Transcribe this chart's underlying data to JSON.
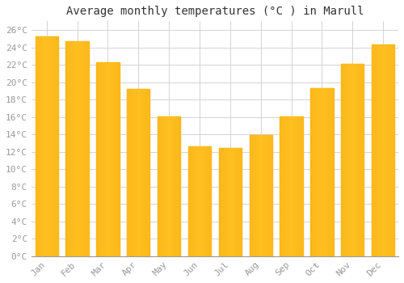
{
  "title": "Average monthly temperatures (°C ) in Marull",
  "months": [
    "Jan",
    "Feb",
    "Mar",
    "Apr",
    "May",
    "Jun",
    "Jul",
    "Aug",
    "Sep",
    "Oct",
    "Nov",
    "Dec"
  ],
  "values": [
    25.3,
    24.7,
    22.3,
    19.2,
    16.1,
    12.6,
    12.4,
    13.9,
    16.1,
    19.3,
    22.1,
    24.3
  ],
  "bar_color": "#FFC020",
  "bar_edge_color": "#E89000",
  "background_color": "#FFFFFF",
  "grid_color": "#CCCCCC",
  "ytick_step": 2,
  "ymax": 27,
  "ymin": 0,
  "title_fontsize": 10,
  "tick_fontsize": 8,
  "font_family": "monospace",
  "tick_color": "#999999"
}
